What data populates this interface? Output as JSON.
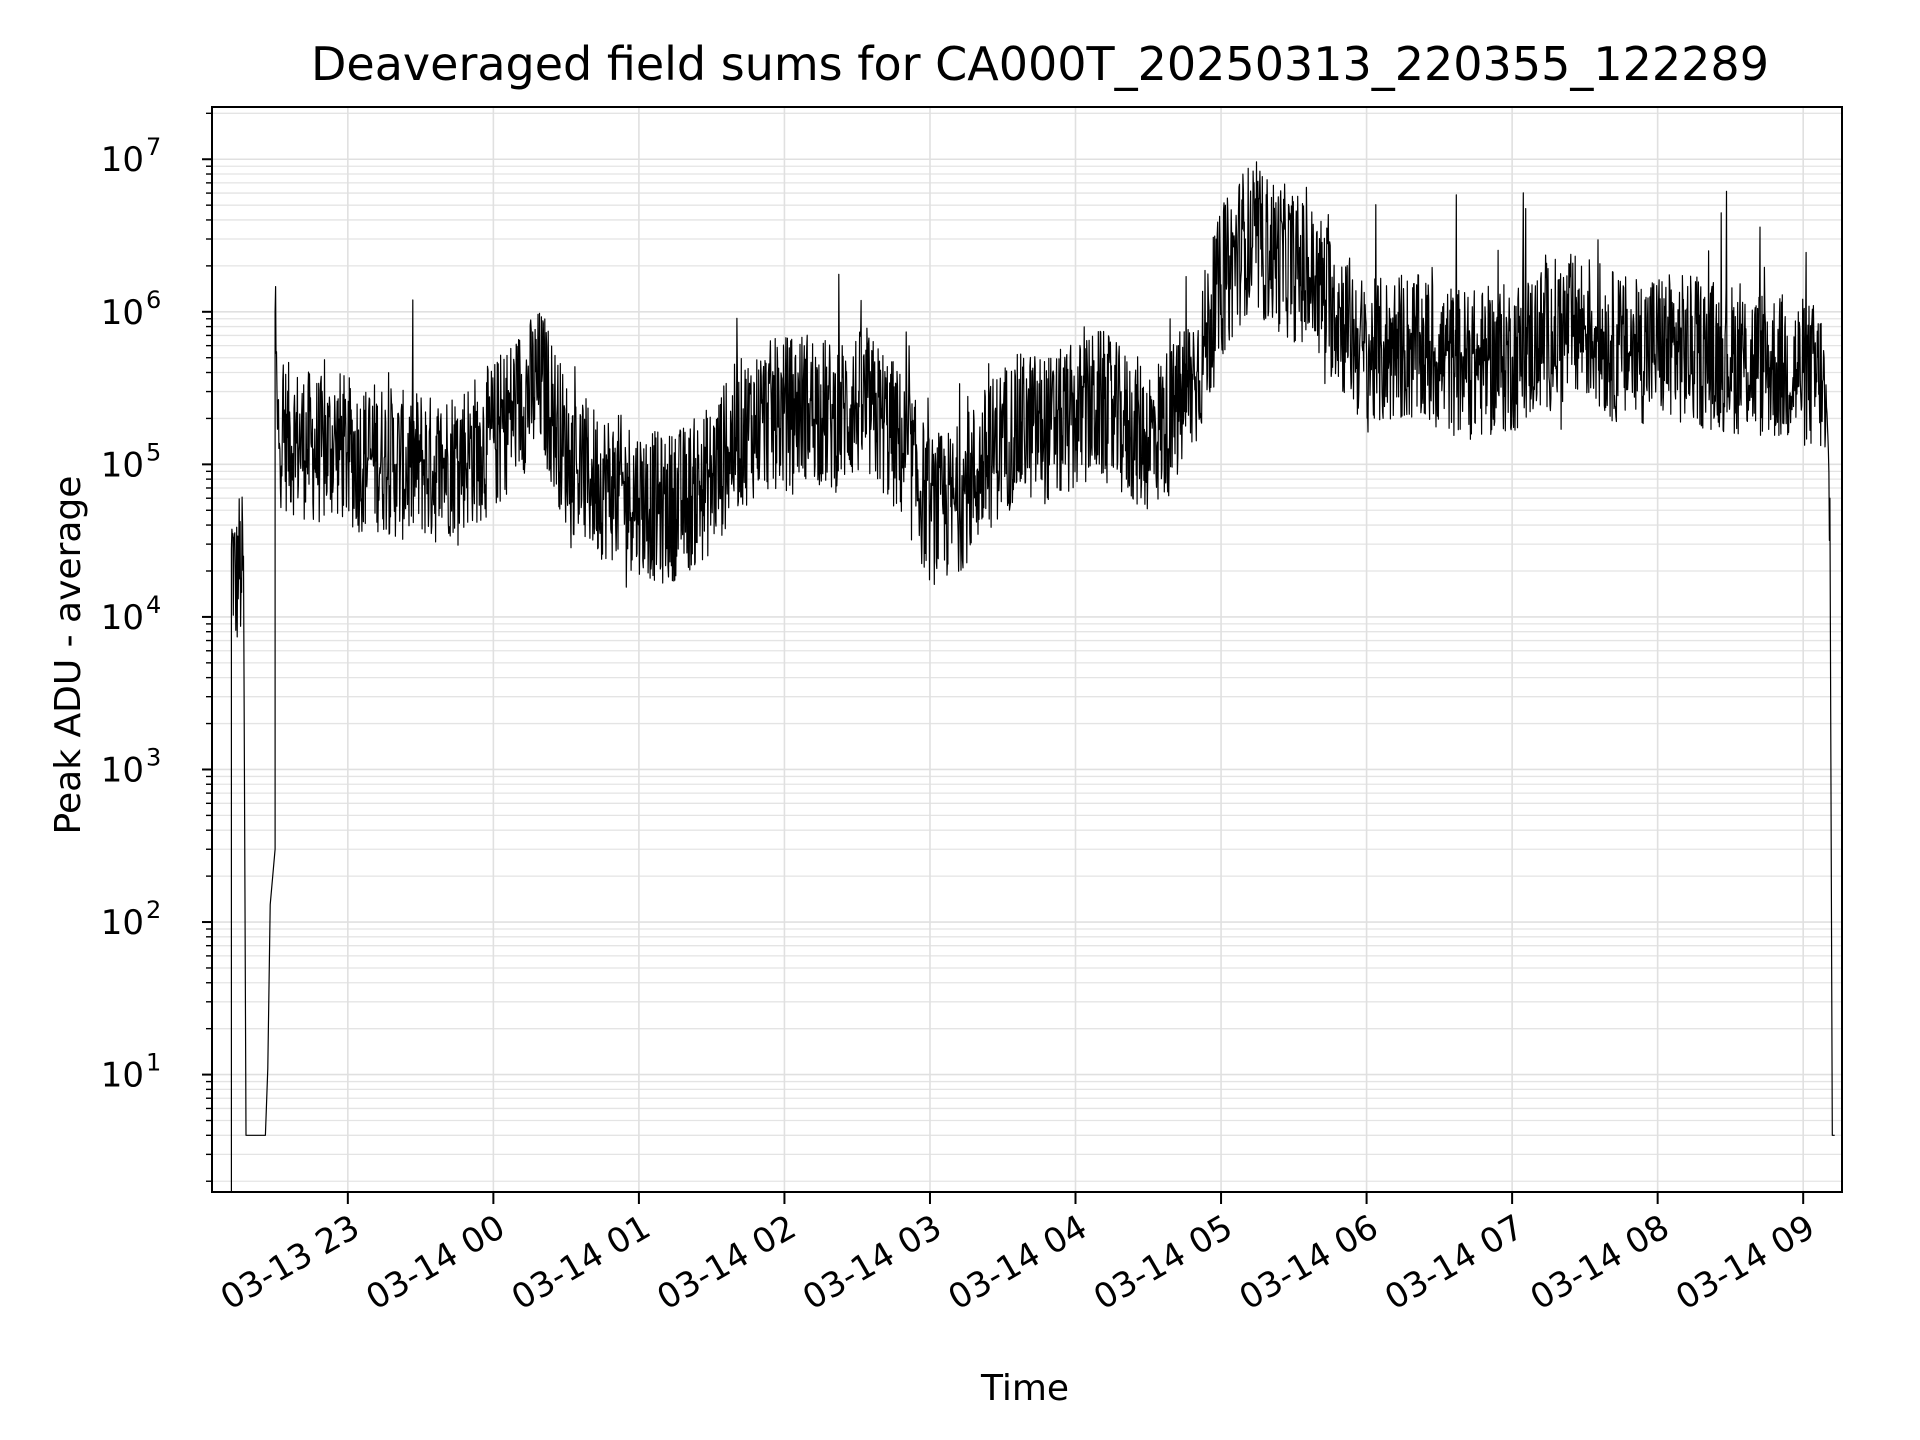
{
  "chart_data": {
    "type": "line",
    "title": "Deaveraged field sums for CA000T_20250313_220355_122289",
    "xlabel": "Time",
    "ylabel": "Peak ADU - average",
    "y_scale": "log",
    "ylim": [
      1.7,
      22000000
    ],
    "xlim": [
      "2025-03-13 22:04",
      "2025-03-14 09:16"
    ],
    "grid": true,
    "grid_minor_y": true,
    "line_color": "#000000",
    "x_ticks": [
      "03-13 23",
      "03-14 00",
      "03-14 01",
      "03-14 02",
      "03-14 03",
      "03-14 04",
      "03-14 05",
      "03-14 06",
      "03-14 07",
      "03-14 08",
      "03-14 09"
    ],
    "x_tick_times": [
      "2025-03-13 23:00",
      "2025-03-14 00:00",
      "2025-03-14 01:00",
      "2025-03-14 02:00",
      "2025-03-14 03:00",
      "2025-03-14 04:00",
      "2025-03-14 05:00",
      "2025-03-14 06:00",
      "2025-03-14 07:00",
      "2025-03-14 08:00",
      "2025-03-14 09:00"
    ],
    "y_ticks": [
      {
        "value": 10,
        "base": "10",
        "exp": "1"
      },
      {
        "value": 100,
        "base": "10",
        "exp": "2"
      },
      {
        "value": 1000,
        "base": "10",
        "exp": "3"
      },
      {
        "value": 10000,
        "base": "10",
        "exp": "4"
      },
      {
        "value": 100000,
        "base": "10",
        "exp": "5"
      },
      {
        "value": 1000000,
        "base": "10",
        "exp": "6"
      },
      {
        "value": 10000000,
        "base": "10",
        "exp": "7"
      }
    ],
    "series": [
      {
        "x": [
          "2025-03-13 22:12",
          "2025-03-13 22:12",
          "2025-03-13 22:14",
          "2025-03-13 22:15",
          "2025-03-13 22:16",
          "2025-03-13 22:17",
          "2025-03-13 22:18",
          "2025-03-13 22:18",
          "2025-03-13 22:26",
          "2025-03-13 22:27",
          "2025-03-13 22:28",
          "2025-03-13 22:30",
          "2025-03-13 22:30",
          "2025-03-13 22:31",
          "2025-03-13 22:35",
          "2025-03-13 22:40",
          "2025-03-13 22:45",
          "2025-03-13 22:50",
          "2025-03-13 22:55",
          "2025-03-13 23:00",
          "2025-03-13 23:05",
          "2025-03-13 23:10",
          "2025-03-13 23:15",
          "2025-03-13 23:20",
          "2025-03-13 23:25",
          "2025-03-13 23:30",
          "2025-03-13 23:35",
          "2025-03-13 23:40",
          "2025-03-13 23:45",
          "2025-03-13 23:50",
          "2025-03-13 23:55",
          "2025-03-14 00:00",
          "2025-03-14 00:10",
          "2025-03-14 00:20",
          "2025-03-14 00:30",
          "2025-03-14 00:40",
          "2025-03-14 00:50",
          "2025-03-14 01:00",
          "2025-03-14 01:10",
          "2025-03-14 01:20",
          "2025-03-14 01:30",
          "2025-03-14 01:40",
          "2025-03-14 01:50",
          "2025-03-14 02:00",
          "2025-03-14 02:10",
          "2025-03-14 02:20",
          "2025-03-14 02:30",
          "2025-03-14 02:40",
          "2025-03-14 02:50",
          "2025-03-14 03:00",
          "2025-03-14 03:10",
          "2025-03-14 03:20",
          "2025-03-14 03:30",
          "2025-03-14 03:40",
          "2025-03-14 03:50",
          "2025-03-14 04:00",
          "2025-03-14 04:10",
          "2025-03-14 04:20",
          "2025-03-14 04:30",
          "2025-03-14 04:40",
          "2025-03-14 04:50",
          "2025-03-14 05:00",
          "2025-03-14 05:10",
          "2025-03-14 05:20",
          "2025-03-14 05:30",
          "2025-03-14 05:40",
          "2025-03-14 05:50",
          "2025-03-14 06:00",
          "2025-03-14 06:15",
          "2025-03-14 06:30",
          "2025-03-14 06:45",
          "2025-03-14 07:00",
          "2025-03-14 07:15",
          "2025-03-14 07:30",
          "2025-03-14 07:45",
          "2025-03-14 08:00",
          "2025-03-14 08:15",
          "2025-03-14 08:30",
          "2025-03-14 08:45",
          "2025-03-14 09:00",
          "2025-03-14 09:08",
          "2025-03-14 09:11",
          "2025-03-14 09:12",
          "2025-03-14 09:13"
        ],
        "y": [
          1.7,
          28000,
          15000,
          24000,
          18000,
          25000,
          4,
          4,
          4,
          11,
          130,
          300,
          1000000,
          170000,
          150000,
          140000,
          130000,
          120000,
          140000,
          120000,
          110000,
          115000,
          110000,
          100000,
          95000,
          105000,
          90000,
          100000,
          110000,
          120000,
          130000,
          150000,
          250000,
          350000,
          120000,
          80000,
          70000,
          60000,
          50000,
          60000,
          80000,
          150000,
          200000,
          220000,
          250000,
          200000,
          250000,
          200000,
          120000,
          50000,
          55000,
          90000,
          150000,
          180000,
          170000,
          200000,
          250000,
          180000,
          150000,
          200000,
          400000,
          1500000,
          3000000,
          2500000,
          2000000,
          1500000,
          900000,
          500000,
          600000,
          500000,
          450000,
          500000,
          700000,
          800000,
          550000,
          600000,
          550000,
          500000,
          450000,
          400000,
          350000,
          60000,
          4,
          4
        ]
      }
    ]
  }
}
